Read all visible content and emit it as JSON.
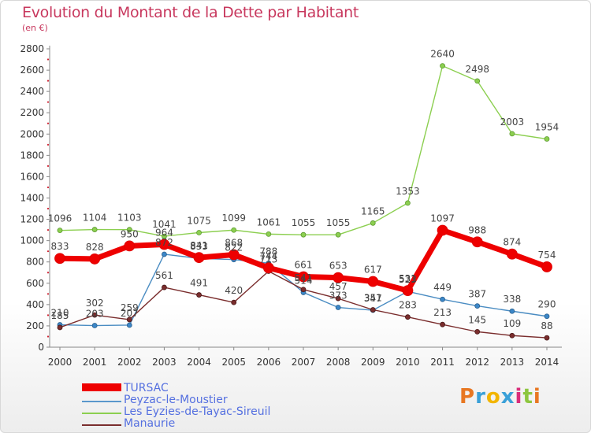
{
  "chart_title": "Evolution du Montant de la Dette par Habitant",
  "unit_label": "(en €)",
  "logo": {
    "text": "Proxiti",
    "colors": [
      "#e87722",
      "#3aa0d8",
      "#f2b500",
      "#3aa0d8",
      "#d92d7a",
      "#8dc63f",
      "#e87722"
    ]
  },
  "chart_data": {
    "type": "line",
    "x": [
      2000,
      2001,
      2002,
      2003,
      2004,
      2005,
      2006,
      2007,
      2008,
      2009,
      2010,
      2011,
      2012,
      2013,
      2014
    ],
    "ylim": [
      0,
      2800
    ],
    "yticks": [
      0,
      200,
      400,
      600,
      800,
      1000,
      1200,
      1400,
      1600,
      1800,
      2000,
      2200,
      2400,
      2600,
      2800
    ],
    "grid": false,
    "legend_position": "bottom-left",
    "series": [
      {
        "name": "TURSAC",
        "color": "#ee0000",
        "values": [
          833,
          828,
          950,
          964,
          841,
          868,
          744,
          661,
          653,
          617,
          531,
          1097,
          988,
          874,
          754
        ]
      },
      {
        "name": "Peyzac-le-Moustier",
        "color": "#4a8cc2",
        "values": [
          210,
          203,
          207,
          872,
          833,
          822,
          788,
          514,
          373,
          347,
          523,
          449,
          387,
          338,
          290
        ]
      },
      {
        "name": "Les Eyzies-de-Tayac-Sireuil",
        "color": "#8ccf50",
        "values": [
          1096,
          1104,
          1103,
          1041,
          1075,
          1099,
          1061,
          1055,
          1055,
          1165,
          1353,
          2640,
          2498,
          2003,
          1954
        ]
      },
      {
        "name": "Manaurie",
        "color": "#7a2d2d",
        "values": [
          185,
          302,
          259,
          561,
          491,
          420,
          713,
          541,
          457,
          351,
          283,
          213,
          145,
          109,
          88
        ]
      }
    ]
  }
}
